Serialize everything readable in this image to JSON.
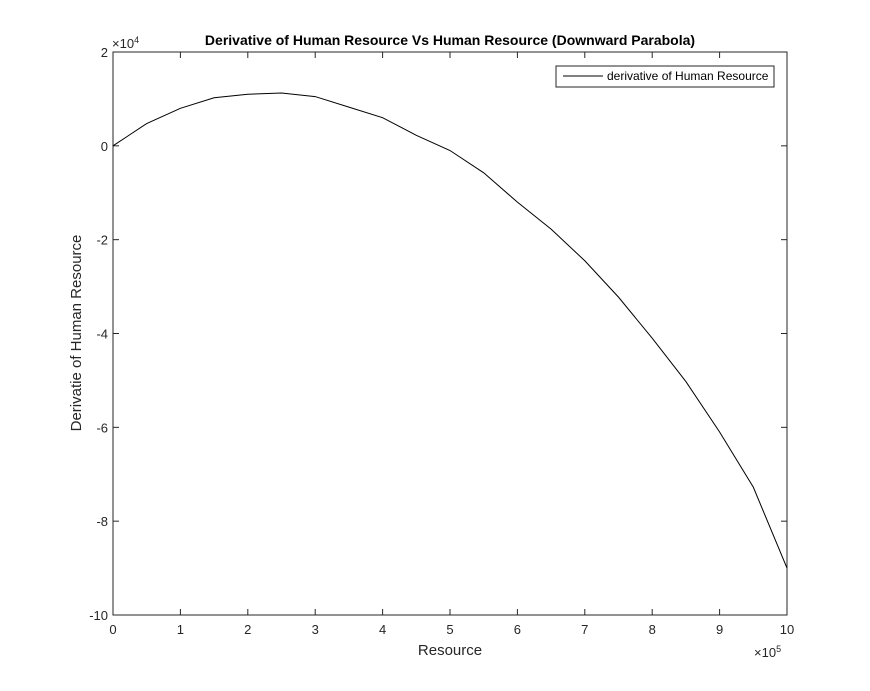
{
  "chart_data": {
    "type": "line",
    "title": "Derivative of Human Resource Vs Human Resource (Downward Parabola)",
    "xlabel": "Resource",
    "ylabel": "Derivatie of Human Resource",
    "x_exponent": "×10",
    "x_exponent_power": "5",
    "y_exponent": "×10",
    "y_exponent_power": "4",
    "xlim": [
      0,
      10
    ],
    "ylim": [
      -10,
      2
    ],
    "xticks": [
      "0",
      "1",
      "2",
      "3",
      "4",
      "5",
      "6",
      "7",
      "8",
      "9",
      "10"
    ],
    "yticks": [
      "-10",
      "-8",
      "-6",
      "-4",
      "-2",
      "0",
      "2"
    ],
    "grid": false,
    "legend_position": "top-right",
    "series": [
      {
        "name": "derivative of Human Resource",
        "color": "#000000",
        "x": [
          0,
          0.5,
          1,
          1.5,
          2,
          2.5,
          3,
          3.5,
          4,
          4.5,
          5,
          5.5,
          6,
          6.5,
          7,
          7.5,
          8,
          8.5,
          9,
          9.5,
          10
        ],
        "y": [
          0,
          0.475,
          0.8,
          1.025,
          1.1,
          1.125,
          1.05,
          0.825,
          0.6,
          0.225,
          -0.1,
          -0.575,
          -1.2,
          -1.775,
          -2.45,
          -3.225,
          -4.1,
          -5.025,
          -6.1,
          -7.275,
          -9.0
        ]
      }
    ]
  }
}
